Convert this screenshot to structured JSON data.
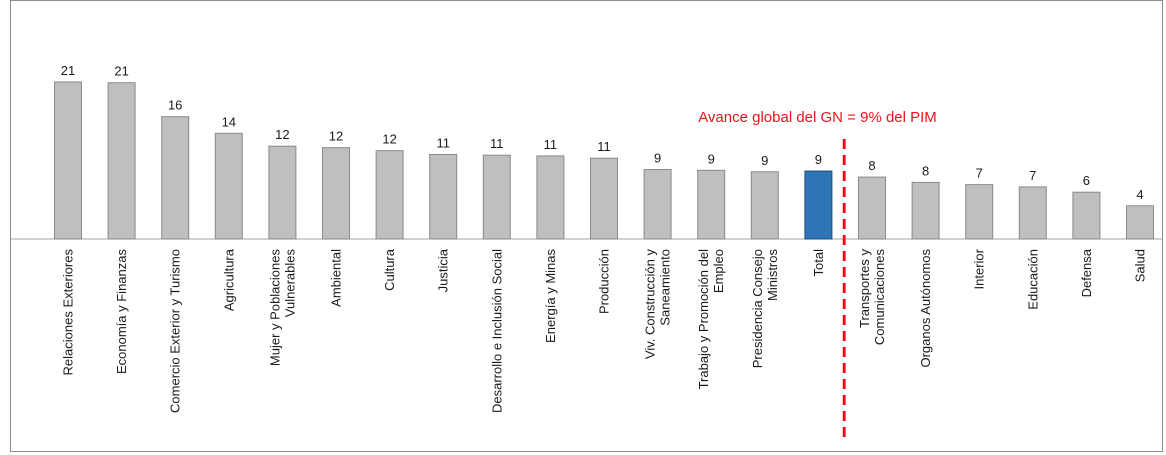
{
  "chart_data": {
    "type": "bar",
    "title": "",
    "xlabel": "",
    "ylabel": "",
    "ylim": [
      0,
      21
    ],
    "grid": false,
    "categories": [
      [
        "Relaciones Exteriores"
      ],
      [
        "Economía y Finanzas"
      ],
      [
        "Comercio Exterior y Turismo"
      ],
      [
        "Agricultura"
      ],
      [
        "Mujer y Poblaciones",
        "Vulnerables"
      ],
      [
        "Ambiental"
      ],
      [
        "Cultura"
      ],
      [
        "Justicia"
      ],
      [
        "Desarrollo e Inclusión Social"
      ],
      [
        "Energía y Minas"
      ],
      [
        "Producción"
      ],
      [
        "Viv. Construcción y",
        "Saneamiento"
      ],
      [
        "Trabajo y Promoción del",
        "Empleo"
      ],
      [
        "Presidencia Consejo",
        "Ministros"
      ],
      [
        "Total"
      ],
      [
        "Transportes y",
        "Comunicaciones"
      ],
      [
        "Organos Autónomos"
      ],
      [
        "Interior"
      ],
      [
        "Educación"
      ],
      [
        "Defensa"
      ],
      [
        "Salud"
      ]
    ],
    "values": [
      21,
      21,
      16,
      14,
      12,
      12,
      12,
      11,
      11,
      11,
      11,
      9,
      9,
      9,
      9,
      8,
      8,
      7,
      7,
      6,
      4
    ],
    "bar_heights": [
      20.8,
      20.7,
      16.2,
      14.0,
      12.3,
      12.1,
      11.7,
      11.2,
      11.1,
      11.0,
      10.7,
      9.2,
      9.1,
      8.9,
      9.0,
      8.2,
      7.5,
      7.2,
      6.9,
      6.2,
      4.4
    ],
    "colors": {
      "bar": "#bfbfbf",
      "bar_edge": "#8a8a8a",
      "highlight": "#2e75b6",
      "highlight_edge": "#1f4e79",
      "annotation": "#e8141c"
    },
    "highlight_index": 14,
    "annotation": {
      "text": "Avance global del GN = 9% del PIM",
      "after_index": 14
    }
  }
}
